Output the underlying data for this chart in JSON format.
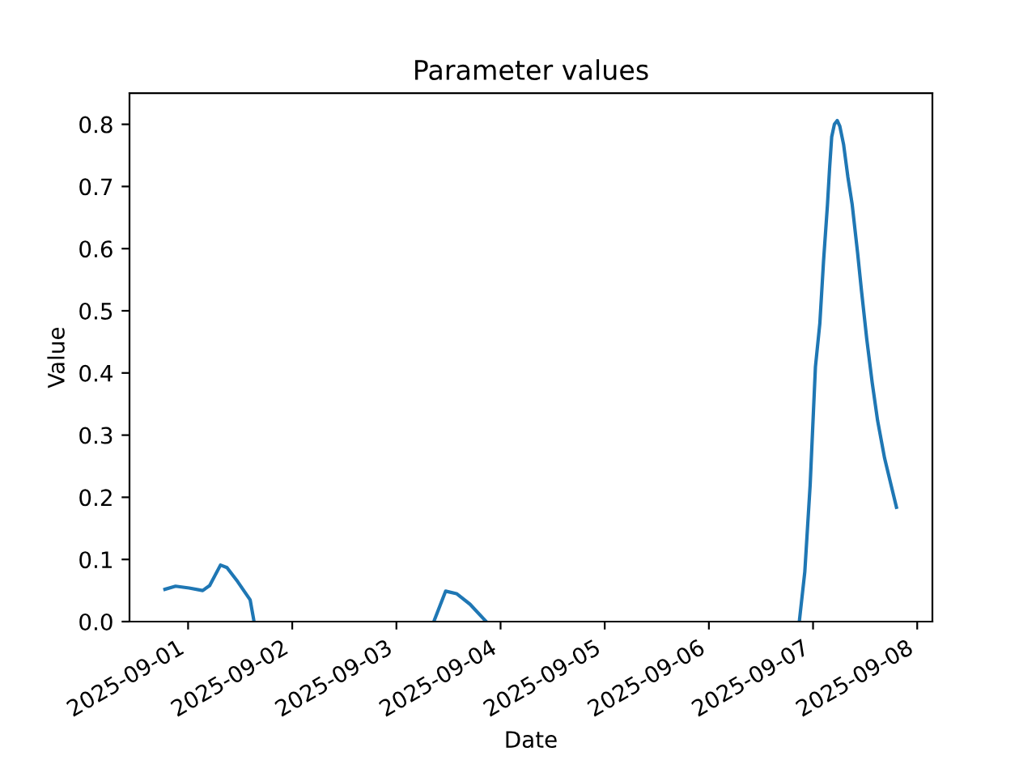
{
  "chart_data": {
    "type": "line",
    "title": "Parameter values",
    "xlabel": "Date",
    "ylabel": "Value",
    "x": [
      "2025-08-31T18:40",
      "2025-08-31T21:07",
      "2025-09-01T00:14",
      "2025-09-01T03:22",
      "2025-09-01T04:58",
      "2025-09-01T07:28",
      "2025-09-01T08:57",
      "2025-09-01T11:27",
      "2025-09-01T14:18",
      "2025-09-01T15:12",
      "2025-09-02T12:00",
      "2025-09-03T08:37",
      "2025-09-03T11:21",
      "2025-09-03T13:51",
      "2025-09-03T16:57",
      "2025-09-03T20:41",
      "2025-09-05T12:00",
      "2025-09-06T20:50",
      "2025-09-06T22:06",
      "2025-09-06T23:20",
      "2025-09-07T00:33",
      "2025-09-07T01:34",
      "2025-09-07T02:25",
      "2025-09-07T03:19",
      "2025-09-07T03:49",
      "2025-09-07T04:18",
      "2025-09-07T04:55",
      "2025-09-07T05:34",
      "2025-09-07T06:10",
      "2025-09-07T07:03",
      "2025-09-07T08:02",
      "2025-09-07T09:01",
      "2025-09-07T10:16",
      "2025-09-07T11:10",
      "2025-09-07T12:23",
      "2025-09-07T13:38",
      "2025-09-07T14:53",
      "2025-09-07T16:29",
      "2025-09-07T18:00",
      "2025-09-07T19:13"
    ],
    "values": [
      0.052,
      0.057,
      0.054,
      0.05,
      0.058,
      0.091,
      0.087,
      0.064,
      0.035,
      0.0,
      null,
      0.0,
      0.049,
      0.045,
      0.028,
      0.0,
      null,
      0.0,
      0.08,
      0.22,
      0.41,
      0.48,
      0.58,
      0.67,
      0.73,
      0.78,
      0.8,
      0.806,
      0.797,
      0.767,
      0.715,
      0.671,
      0.593,
      0.532,
      0.454,
      0.384,
      0.323,
      0.263,
      0.219,
      0.184
    ],
    "color": "#1f77b4",
    "line_style": "solid",
    "xlim": [
      "2025-08-31T10:30",
      "2025-09-08T03:30"
    ],
    "xticks": [
      "2025-09-01",
      "2025-09-02",
      "2025-09-03",
      "2025-09-04",
      "2025-09-05",
      "2025-09-06",
      "2025-09-07",
      "2025-09-08"
    ],
    "ylim": [
      0,
      0.85
    ],
    "yticks": [
      {
        "value": 0,
        "label": "0.0"
      },
      0.1,
      0.2,
      0.3,
      0.4,
      0.5,
      0.6,
      0.7,
      0.8
    ]
  }
}
